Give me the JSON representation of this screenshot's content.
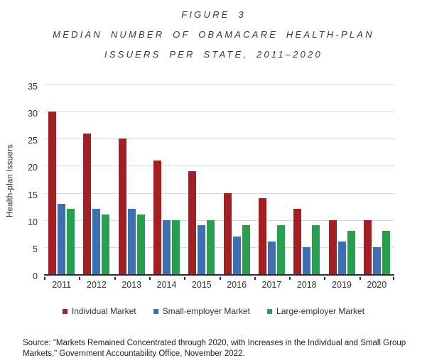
{
  "figure": {
    "title_line1": "FIGURE 3",
    "title_line2": "MEDIAN NUMBER OF OBAMACARE HEALTH-PLAN",
    "title_line3": "ISSUERS PER STATE, 2011–2020"
  },
  "chart_data": {
    "type": "bar",
    "categories": [
      "2011",
      "2012",
      "2013",
      "2014",
      "2015",
      "2016",
      "2017",
      "2018",
      "2019",
      "2020"
    ],
    "series": [
      {
        "name": "Individual Market",
        "color": "#A21F24",
        "values": [
          30,
          26,
          25,
          21,
          19,
          15,
          14,
          12,
          10,
          10
        ]
      },
      {
        "name": "Small-employer Market",
        "color": "#3E6FB2",
        "values": [
          13,
          12,
          12,
          10,
          9,
          7,
          6,
          5,
          6,
          5
        ]
      },
      {
        "name": "Large-employer Market",
        "color": "#26A04F",
        "values": [
          12,
          11,
          11,
          10,
          10,
          9,
          9,
          9,
          8,
          8
        ]
      }
    ],
    "title": "MEDIAN NUMBER OF OBAMACARE HEALTH-PLAN ISSUERS PER STATE, 2011–2020",
    "xlabel": "",
    "ylabel": "Health-plan Issuers",
    "ylim": [
      0,
      35
    ],
    "ytick_step": 5,
    "grid": true,
    "legend_position": "bottom"
  },
  "source": {
    "text": "Source: \"Markets Remained Concentrated through 2020, with Increases in the Individual and Small Group Markets,\" Government Accountability Office, November 2022."
  }
}
